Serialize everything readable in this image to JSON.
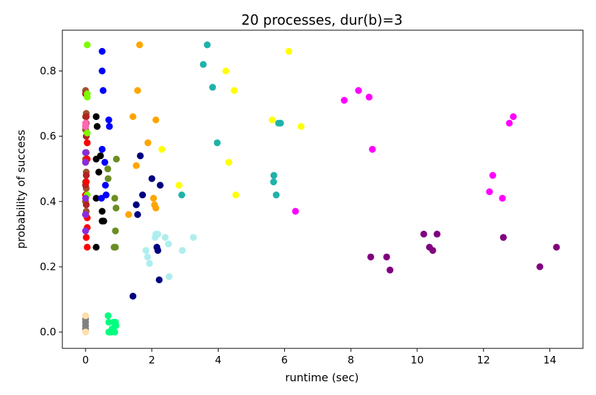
{
  "chart_data": {
    "type": "scatter",
    "title": "20 processes, dur(b)=3",
    "xlabel": "runtime (sec)",
    "ylabel": "probability of success",
    "xlim": [
      -0.7,
      15.0
    ],
    "ylim": [
      -0.05,
      0.925
    ],
    "xticks": [
      0,
      2,
      4,
      6,
      8,
      10,
      12,
      14
    ],
    "yticks": [
      0.0,
      0.2,
      0.4,
      0.6,
      0.8
    ],
    "xtick_labels": [
      "0",
      "2",
      "4",
      "6",
      "8",
      "10",
      "12",
      "14"
    ],
    "ytick_labels": [
      "0.0",
      "0.2",
      "0.4",
      "0.6",
      "0.8"
    ],
    "grid": false,
    "legend": null,
    "series": [
      {
        "color": "#a0522d",
        "points": [
          [
            0.0,
            0.74
          ],
          [
            0.02,
            0.67
          ],
          [
            0.0,
            0.66
          ],
          [
            0.02,
            0.64
          ],
          [
            0.0,
            0.62
          ],
          [
            0.02,
            0.55
          ],
          [
            0.0,
            0.53
          ],
          [
            0.02,
            0.49
          ],
          [
            0.0,
            0.46
          ],
          [
            0.02,
            0.44
          ],
          [
            0.0,
            0.4
          ],
          [
            0.02,
            0.37
          ]
        ]
      },
      {
        "color": "#b22222",
        "points": [
          [
            0.0,
            0.73
          ],
          [
            0.02,
            0.66
          ],
          [
            0.0,
            0.63
          ],
          [
            0.02,
            0.6
          ],
          [
            0.0,
            0.52
          ],
          [
            0.02,
            0.48
          ],
          [
            0.0,
            0.45
          ],
          [
            0.02,
            0.39
          ],
          [
            0.0,
            0.36
          ]
        ]
      },
      {
        "color": "#ff0000",
        "points": [
          [
            0.05,
            0.58
          ],
          [
            0.05,
            0.53
          ],
          [
            0.02,
            0.46
          ],
          [
            0.0,
            0.42
          ],
          [
            0.05,
            0.35
          ],
          [
            0.05,
            0.32
          ],
          [
            0.02,
            0.29
          ],
          [
            0.05,
            0.26
          ]
        ]
      },
      {
        "color": "#7cfc00",
        "points": [
          [
            0.05,
            0.88
          ],
          [
            0.05,
            0.73
          ],
          [
            0.05,
            0.72
          ],
          [
            0.05,
            0.61
          ],
          [
            0.0,
            0.52
          ],
          [
            0.05,
            0.42
          ]
        ]
      },
      {
        "color": "#8a2be2",
        "points": [
          [
            0.0,
            0.55
          ],
          [
            0.0,
            0.52
          ],
          [
            0.0,
            0.41
          ],
          [
            0.0,
            0.31
          ],
          [
            0.0,
            0.36
          ]
        ]
      },
      {
        "color": "#ff69b4",
        "points": [
          [
            0.0,
            0.63
          ],
          [
            0.0,
            0.64
          ]
        ]
      },
      {
        "color": "#808080",
        "points": [
          [
            0.0,
            0.04
          ],
          [
            0.0,
            0.03
          ],
          [
            0.0,
            0.02
          ],
          [
            0.0,
            0.01
          ]
        ]
      },
      {
        "color": "#ffdead",
        "points": [
          [
            0.0,
            0.05
          ],
          [
            0.0,
            0.0
          ]
        ]
      },
      {
        "color": "#000000",
        "points": [
          [
            0.32,
            0.66
          ],
          [
            0.35,
            0.63
          ],
          [
            0.32,
            0.53
          ],
          [
            0.45,
            0.54
          ],
          [
            0.4,
            0.49
          ],
          [
            0.32,
            0.41
          ],
          [
            0.5,
            0.37
          ],
          [
            0.5,
            0.34
          ],
          [
            0.55,
            0.34
          ],
          [
            0.32,
            0.26
          ]
        ]
      },
      {
        "color": "#0000ff",
        "points": [
          [
            0.5,
            0.86
          ],
          [
            0.5,
            0.8
          ],
          [
            0.53,
            0.74
          ],
          [
            0.7,
            0.65
          ],
          [
            0.72,
            0.63
          ],
          [
            0.5,
            0.56
          ],
          [
            0.58,
            0.52
          ],
          [
            0.6,
            0.45
          ],
          [
            0.62,
            0.42
          ],
          [
            0.48,
            0.41
          ]
        ]
      },
      {
        "color": "#6b8e23",
        "points": [
          [
            0.67,
            0.5
          ],
          [
            0.68,
            0.47
          ],
          [
            0.93,
            0.53
          ],
          [
            0.88,
            0.41
          ],
          [
            0.92,
            0.38
          ],
          [
            0.9,
            0.31
          ],
          [
            0.86,
            0.26
          ],
          [
            0.9,
            0.26
          ]
        ]
      },
      {
        "color": "#00ff7f",
        "points": [
          [
            0.68,
            0.05
          ],
          [
            0.7,
            0.03
          ],
          [
            0.85,
            0.03
          ],
          [
            0.9,
            0.03
          ],
          [
            0.92,
            0.02
          ],
          [
            0.7,
            0.0
          ],
          [
            0.78,
            0.0
          ],
          [
            0.88,
            0.0
          ],
          [
            0.8,
            0.01
          ]
        ]
      },
      {
        "color": "#ffa500",
        "points": [
          [
            1.63,
            0.88
          ],
          [
            1.57,
            0.74
          ],
          [
            1.43,
            0.66
          ],
          [
            2.12,
            0.65
          ],
          [
            1.88,
            0.58
          ],
          [
            1.53,
            0.51
          ],
          [
            2.05,
            0.41
          ],
          [
            2.08,
            0.39
          ],
          [
            2.12,
            0.38
          ],
          [
            1.3,
            0.36
          ]
        ]
      },
      {
        "color": "#000080",
        "points": [
          [
            1.65,
            0.54
          ],
          [
            2.0,
            0.47
          ],
          [
            2.25,
            0.45
          ],
          [
            1.72,
            0.42
          ],
          [
            1.53,
            0.39
          ],
          [
            1.57,
            0.36
          ],
          [
            2.15,
            0.26
          ],
          [
            2.18,
            0.25
          ],
          [
            2.22,
            0.16
          ],
          [
            1.43,
            0.11
          ]
        ]
      },
      {
        "color": "#afeeee",
        "points": [
          [
            2.12,
            0.3
          ],
          [
            2.18,
            0.3
          ],
          [
            2.1,
            0.29
          ],
          [
            2.4,
            0.29
          ],
          [
            2.5,
            0.27
          ],
          [
            3.25,
            0.29
          ],
          [
            1.82,
            0.25
          ],
          [
            2.92,
            0.25
          ],
          [
            1.87,
            0.23
          ],
          [
            1.93,
            0.21
          ],
          [
            2.52,
            0.17
          ]
        ]
      },
      {
        "color": "#ffff00",
        "points": [
          [
            2.3,
            0.56
          ],
          [
            2.82,
            0.45
          ],
          [
            4.23,
            0.8
          ],
          [
            4.48,
            0.74
          ],
          [
            4.32,
            0.52
          ],
          [
            4.53,
            0.42
          ],
          [
            5.63,
            0.65
          ],
          [
            6.13,
            0.86
          ],
          [
            6.5,
            0.63
          ]
        ]
      },
      {
        "color": "#20b2aa",
        "points": [
          [
            3.67,
            0.88
          ],
          [
            3.55,
            0.82
          ],
          [
            3.83,
            0.75
          ],
          [
            3.97,
            0.58
          ],
          [
            2.9,
            0.42
          ],
          [
            5.82,
            0.64
          ],
          [
            5.88,
            0.64
          ],
          [
            5.68,
            0.48
          ],
          [
            5.67,
            0.46
          ],
          [
            5.75,
            0.42
          ]
        ]
      },
      {
        "color": "#ff00ff",
        "points": [
          [
            6.33,
            0.37
          ],
          [
            7.8,
            0.71
          ],
          [
            8.23,
            0.74
          ],
          [
            8.55,
            0.72
          ],
          [
            8.65,
            0.56
          ],
          [
            12.28,
            0.48
          ],
          [
            12.18,
            0.43
          ],
          [
            12.57,
            0.41
          ],
          [
            12.78,
            0.64
          ],
          [
            12.9,
            0.66
          ]
        ]
      },
      {
        "color": "#800080",
        "points": [
          [
            8.6,
            0.23
          ],
          [
            9.08,
            0.23
          ],
          [
            9.18,
            0.19
          ],
          [
            10.2,
            0.3
          ],
          [
            10.37,
            0.26
          ],
          [
            10.47,
            0.25
          ],
          [
            10.6,
            0.3
          ],
          [
            12.6,
            0.29
          ],
          [
            13.7,
            0.2
          ],
          [
            14.2,
            0.26
          ]
        ]
      }
    ]
  }
}
